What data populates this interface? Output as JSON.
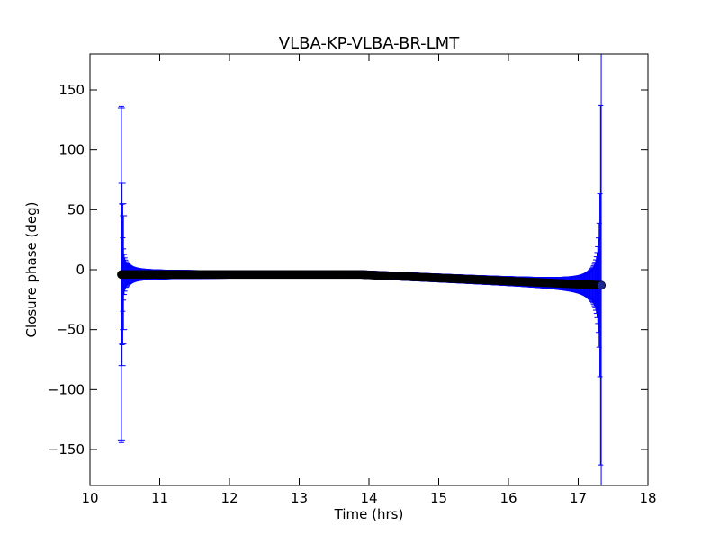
{
  "chart_data": {
    "type": "scatter",
    "title": "VLBA-KP-VLBA-BR-LMT",
    "xlabel": "Time (hrs)",
    "ylabel": "Closure phase (deg)",
    "xlim": [
      10,
      18
    ],
    "ylim": [
      -180,
      180
    ],
    "x_ticks": [
      "10",
      "11",
      "12",
      "13",
      "14",
      "15",
      "16",
      "17",
      "18"
    ],
    "y_ticks": [
      "150",
      "100",
      "50",
      "0",
      "−50",
      "−100",
      "−150"
    ],
    "y_tick_values": [
      150,
      100,
      50,
      0,
      -50,
      -100,
      -150
    ],
    "grid": false,
    "series": [
      {
        "marker": "circle",
        "point_color": "#000000",
        "errorbar_color": "#0000ff",
        "time_start": 10.45,
        "time_end": 17.33,
        "phase_start": -4,
        "phase_mid": -4,
        "phase_end": -13,
        "sigma_min": 2.5,
        "first_errorbars": [
          {
            "x": 10.45,
            "y": -4,
            "lo": -142,
            "hi": 135
          },
          {
            "x": 10.46,
            "y": -4,
            "lo": -80,
            "hi": 72
          },
          {
            "x": 10.47,
            "y": -4,
            "lo": -62,
            "hi": 55
          },
          {
            "x": 10.48,
            "y": -4,
            "lo": -50,
            "hi": 45
          }
        ]
      }
    ]
  }
}
